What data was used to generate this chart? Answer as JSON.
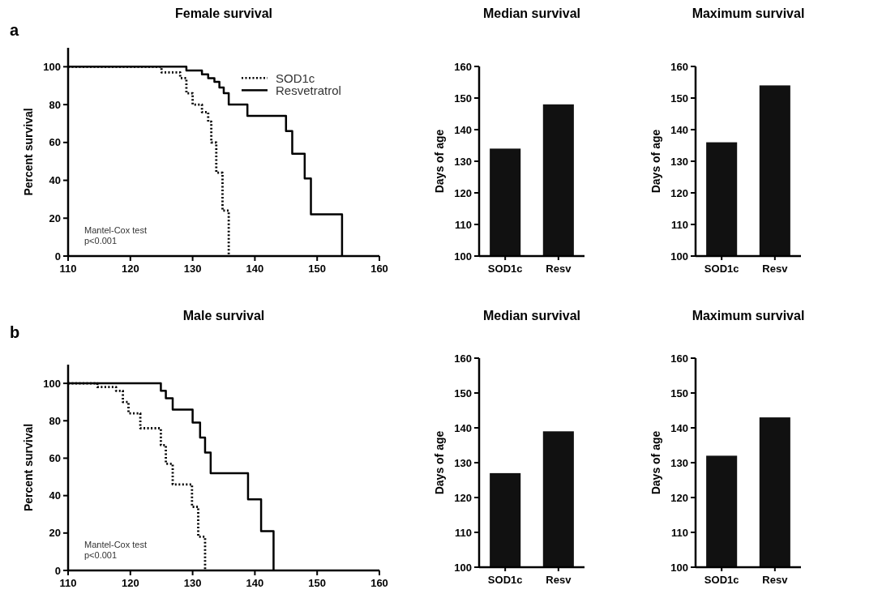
{
  "chart_data": [
    {
      "type": "step",
      "title": "Female survival",
      "ylabel": "Percent survival",
      "xlim": [
        110,
        160
      ],
      "xticks": [
        110,
        120,
        130,
        140,
        150,
        160
      ],
      "ylim": [
        0,
        110
      ],
      "yticks": [
        0,
        20,
        40,
        60,
        80,
        100
      ],
      "legend": "top right",
      "annotations": [
        "a",
        "Mantel-Cox test",
        "p<0.001"
      ],
      "series": [
        {
          "name": "SOD1c",
          "color": "#000000",
          "line_style": "dotted",
          "x": [
            110,
            125,
            128,
            129,
            130,
            131.5,
            132.5,
            133,
            133.8,
            134.8,
            135.8
          ],
          "values": [
            100,
            97,
            94,
            86,
            80,
            76,
            71,
            60,
            44,
            24,
            0
          ]
        },
        {
          "name": "Resvetratrol",
          "color": "#000000",
          "line_style": "solid",
          "x": [
            110,
            129,
            131.5,
            132.5,
            133.5,
            134.3,
            135,
            135.8,
            138.8,
            145,
            146,
            148,
            149,
            154
          ],
          "values": [
            100,
            98,
            96,
            94,
            92,
            89,
            86,
            80,
            74,
            66,
            54,
            41,
            22,
            0
          ]
        }
      ]
    },
    {
      "type": "bar",
      "title": "Median survival",
      "ylabel": "Days of age",
      "categories": [
        "SOD1c",
        "Resv"
      ],
      "values": [
        134,
        148
      ],
      "color": "#111111",
      "ylim": [
        100,
        160
      ],
      "yticks": [
        100,
        110,
        120,
        130,
        140,
        150,
        160
      ]
    },
    {
      "type": "bar",
      "title": "Maximum survival",
      "ylabel": "Days of age",
      "categories": [
        "SOD1c",
        "Resv"
      ],
      "values": [
        136,
        154
      ],
      "color": "#111111",
      "ylim": [
        100,
        160
      ],
      "yticks": [
        100,
        110,
        120,
        130,
        140,
        150,
        160
      ]
    },
    {
      "type": "step",
      "title": "Male survival",
      "ylabel": "Percent survival",
      "xlim": [
        110,
        160
      ],
      "xticks": [
        110,
        120,
        130,
        140,
        150,
        160
      ],
      "ylim": [
        0,
        110
      ],
      "yticks": [
        0,
        20,
        40,
        60,
        80,
        100
      ],
      "annotations": [
        "b",
        "Mantel-Cox test",
        "p<0.001"
      ],
      "series": [
        {
          "color": "#000000",
          "line_style": "dotted",
          "x": [
            110,
            114.7,
            117.7,
            118.8,
            119.7,
            121.6,
            124.9,
            125.7,
            126.8,
            129.9,
            130.9,
            132
          ],
          "values": [
            100,
            98,
            96,
            90,
            84,
            76,
            67,
            57,
            46,
            34,
            18,
            0
          ]
        },
        {
          "color": "#000000",
          "line_style": "solid",
          "x": [
            110,
            124.9,
            125.7,
            126.8,
            130,
            131.2,
            132,
            132.9,
            138.9,
            141,
            143
          ],
          "values": [
            100,
            96,
            92,
            86,
            79,
            71,
            63,
            52,
            38,
            21,
            0
          ]
        }
      ]
    },
    {
      "type": "bar",
      "title": "Median survival",
      "ylabel": "Days of age",
      "categories": [
        "SOD1c",
        "Resv"
      ],
      "values": [
        127,
        139
      ],
      "color": "#111111",
      "ylim": [
        100,
        160
      ],
      "yticks": [
        100,
        110,
        120,
        130,
        140,
        150,
        160
      ]
    },
    {
      "type": "bar",
      "title": "Maximum survival",
      "ylabel": "Days of age",
      "categories": [
        "SOD1c",
        "Resv"
      ],
      "values": [
        132,
        143
      ],
      "color": "#111111",
      "ylim": [
        100,
        160
      ],
      "yticks": [
        100,
        110,
        120,
        130,
        140,
        150,
        160
      ]
    }
  ]
}
